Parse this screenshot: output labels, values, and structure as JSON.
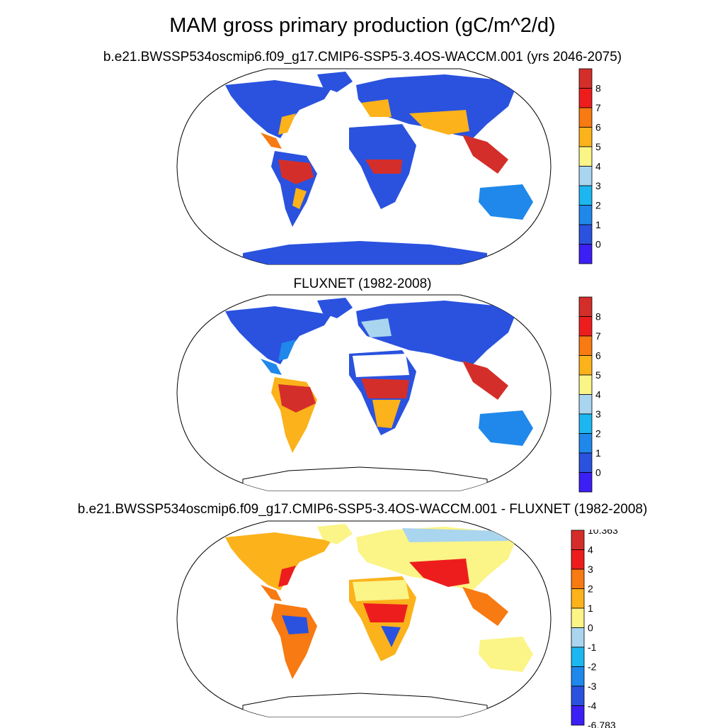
{
  "figure": {
    "title": "MAM gross primary production (gC/m^2/d)"
  },
  "panels": [
    {
      "subtitle": "b.e21.BWSSP534oscmip6.f09_g17.CMIP6-SSP5-3.4OS-WACCM.001 (yrs 2046-2075)",
      "kind": "model"
    },
    {
      "subtitle": "FLUXNET (1982-2008)",
      "kind": "obs"
    },
    {
      "subtitle": "b.e21.BWSSP534oscmip6.f09_g17.CMIP6-SSP5-3.4OS-WACCM.001 - FLUXNET (1982-2008)",
      "kind": "diff"
    }
  ],
  "colorbars": {
    "gpp": {
      "labels": [
        "8",
        "7",
        "6",
        "5",
        "4",
        "3",
        "2",
        "1",
        "0"
      ],
      "colors": [
        "#d42e2a",
        "#ee1d1d",
        "#f77a12",
        "#fbb21b",
        "#fbf487",
        "#aad5ef",
        "#1cb7f0",
        "#1f88ea",
        "#2a52df",
        "#3c1ff4"
      ]
    },
    "diff": {
      "labels": [
        "10.363",
        "4",
        "3",
        "2",
        "1",
        "0",
        "-1",
        "-2",
        "-3",
        "-4",
        "-6.783"
      ],
      "colors": [
        "#d42e2a",
        "#ee1d1d",
        "#f77a12",
        "#fbb21b",
        "#fbf487",
        "#aad5ef",
        "#1cb7f0",
        "#1f88ea",
        "#2a52df",
        "#3c1ff4"
      ]
    }
  }
}
